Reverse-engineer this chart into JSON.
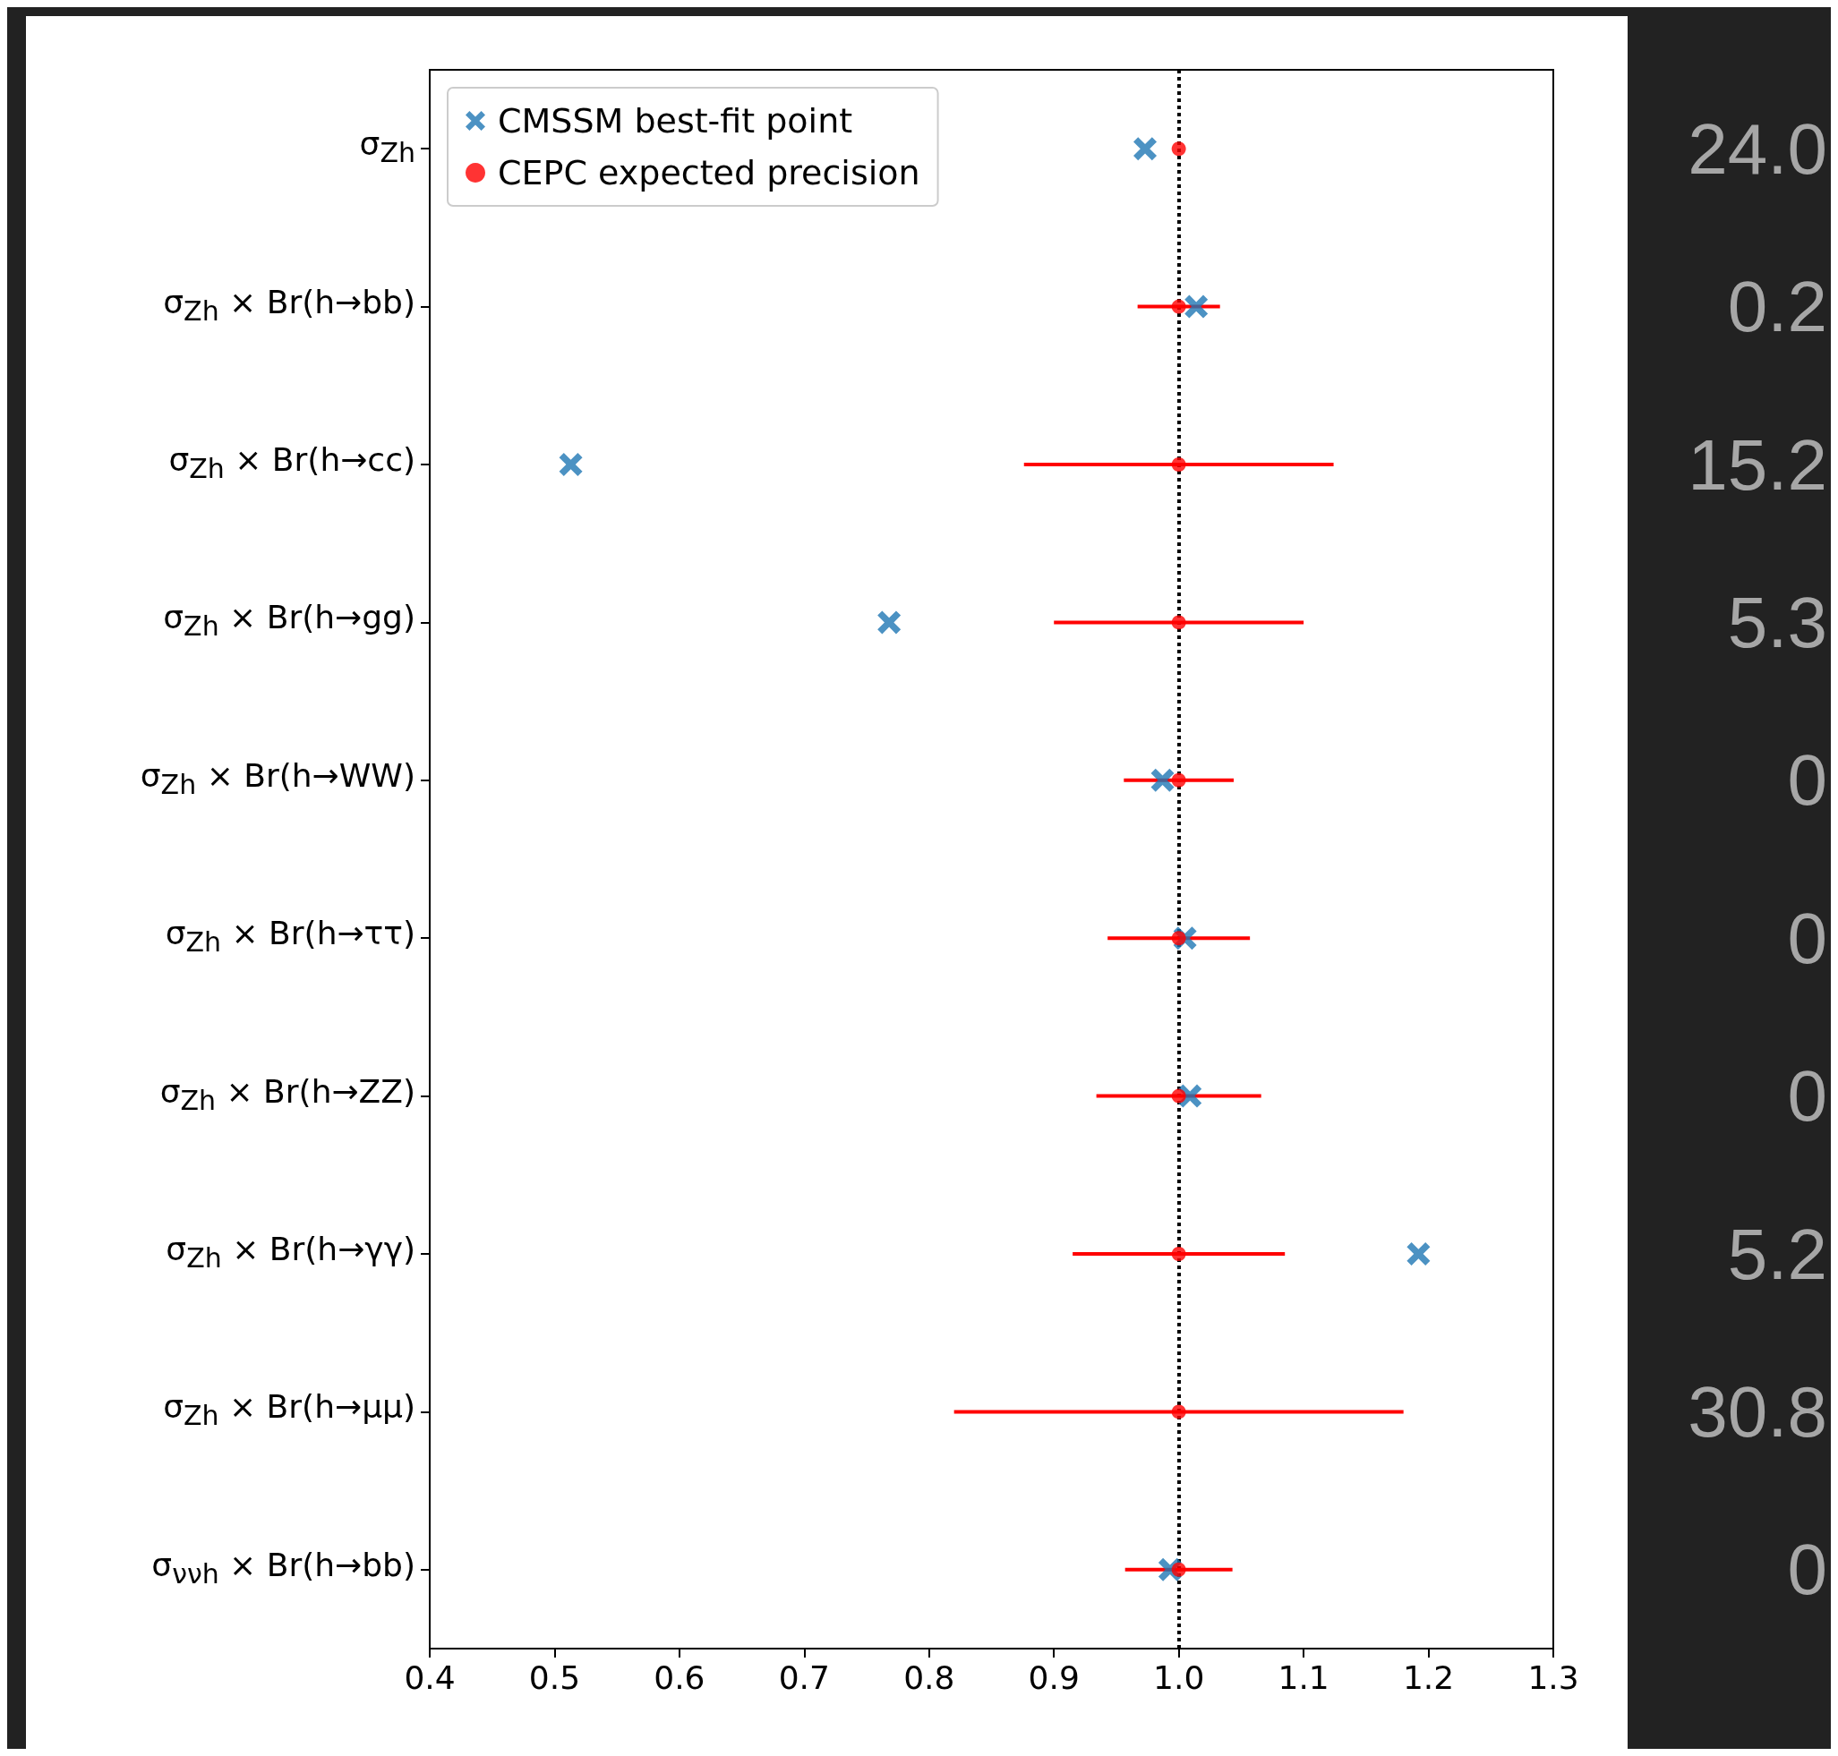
{
  "chart_data": {
    "type": "scatter",
    "orientation": "horizontal",
    "categories": [
      "σ$_{Zh}$",
      "σ$_{Zh}$ × Br(h→bb)",
      "σ$_{Zh}$ × Br(h→cc)",
      "σ$_{Zh}$ × Br(h→gg)",
      "σ$_{Zh}$ × Br(h→WW)",
      "σ$_{Zh}$ × Br(h→ττ)",
      "σ$_{Zh}$ × Br(h→ZZ)",
      "σ$_{Zh}$ × Br(h→γγ)",
      "σ$_{Zh}$ × Br(h→μμ)",
      "σ$_{ννh}$ × Br(h→bb)"
    ],
    "series": [
      {
        "name": "CMSSM best-fit point",
        "marker": "cross",
        "color": "#1f77b4",
        "values": [
          0.973,
          1.014,
          0.513,
          0.768,
          0.987,
          1.005,
          1.009,
          1.192,
          null,
          0.993
        ]
      },
      {
        "name": "CEPC expected precision",
        "marker": "circle",
        "color": "#ff0000",
        "values": [
          1,
          1,
          1,
          1,
          1,
          1,
          1,
          1,
          1,
          1
        ],
        "errors": [
          null,
          0.033,
          0.124,
          0.1,
          0.044,
          0.057,
          0.066,
          0.085,
          0.18,
          0.043
        ]
      }
    ],
    "xlim": [
      0.4,
      1.3
    ],
    "xticks": [
      0.4,
      0.5,
      0.6,
      0.7,
      0.8,
      0.9,
      {
        "value": 1,
        "label": "1.0"
      },
      1.1,
      1.2,
      1.3
    ],
    "ref_lines": [
      {
        "axis": "x",
        "value": 1.0,
        "color": "#000000",
        "line_style": "dotted"
      }
    ],
    "legend": "top left",
    "grid": false,
    "annotations": [
      "24.0",
      "0.2",
      "15.2",
      "5.3",
      "0",
      "0",
      "0",
      "5.2",
      "30.8",
      "0"
    ]
  }
}
